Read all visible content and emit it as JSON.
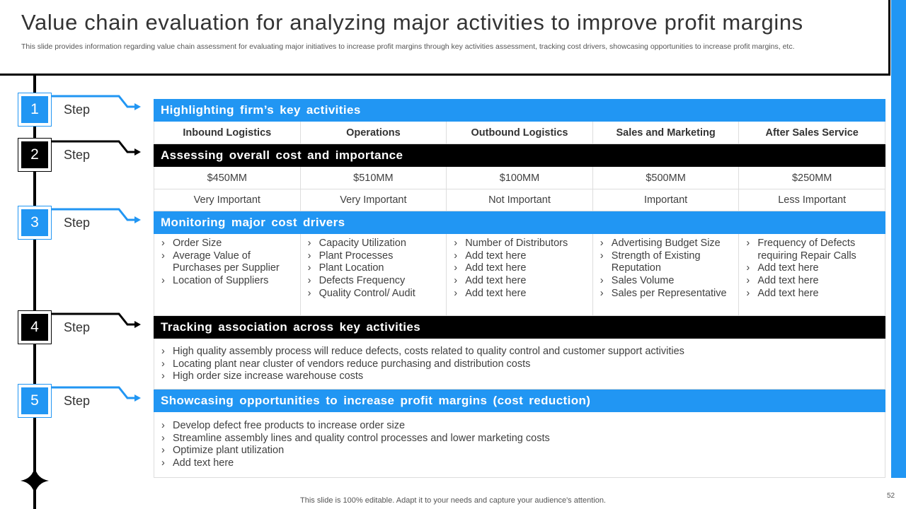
{
  "title": "Value chain evaluation for analyzing major activities to improve profit margins",
  "subtitle": "This slide provides information regarding value chain assessment for evaluating major initiatives to increase profit margins through key activities assessment, tracking cost drivers, showcasing opportunities to increase profit margins, etc.",
  "colors": {
    "accent": "#2196f3",
    "dark": "#000000"
  },
  "steps": [
    {
      "num": "1",
      "label": "Step",
      "color": "blue"
    },
    {
      "num": "2",
      "label": "Step",
      "color": "black"
    },
    {
      "num": "3",
      "label": "Step",
      "color": "blue"
    },
    {
      "num": "4",
      "label": "Step",
      "color": "black"
    },
    {
      "num": "5",
      "label": "Step",
      "color": "blue"
    }
  ],
  "sections": {
    "s1": "Highlighting  firm’s key activities",
    "s2": "Assessing  overall cost and importance",
    "s3": "Monitoring  major cost drivers",
    "s4": "Tracking association  across key activities",
    "s5": "Showcasing opportunities  to increase profit margins  (cost reduction)"
  },
  "activities": [
    "Inbound Logistics",
    "Operations",
    "Outbound Logistics",
    "Sales and Marketing",
    "After Sales Service"
  ],
  "costs": [
    "$450MM",
    "$510MM",
    "$100MM",
    "$500MM",
    "$250MM"
  ],
  "importance": [
    "Very Important",
    "Very Important",
    "Not Important",
    "Important",
    "Less Important"
  ],
  "drivers": [
    [
      "Order Size",
      "Average Value of Purchases per Supplier",
      "Location of Suppliers"
    ],
    [
      "Capacity Utilization",
      "Plant Processes",
      "Plant Location",
      "Defects Frequency",
      "Quality Control/ Audit"
    ],
    [
      "Number of Distributors",
      "Add text here",
      "Add text here",
      "Add text here",
      "Add text here"
    ],
    [
      "Advertising Budget Size",
      "Strength of Existing Reputation",
      "Sales Volume",
      "Sales per Representative"
    ],
    [
      "Frequency of Defects requiring Repair Calls",
      "Add text here",
      "Add text here",
      "Add text here"
    ]
  ],
  "associations": [
    "High quality assembly process will reduce defects, costs related to quality control and customer support activities",
    "Locating plant near cluster of vendors reduce purchasing and distribution costs",
    "High order size increase warehouse costs"
  ],
  "opportunities": [
    "Develop defect free products to increase order size",
    "Streamline assembly lines and quality control processes and lower marketing costs",
    "Optimize plant utilization",
    "Add text here"
  ],
  "footer": "This slide is 100% editable. Adapt it to your needs and capture your audience's attention.",
  "page_number": "52"
}
